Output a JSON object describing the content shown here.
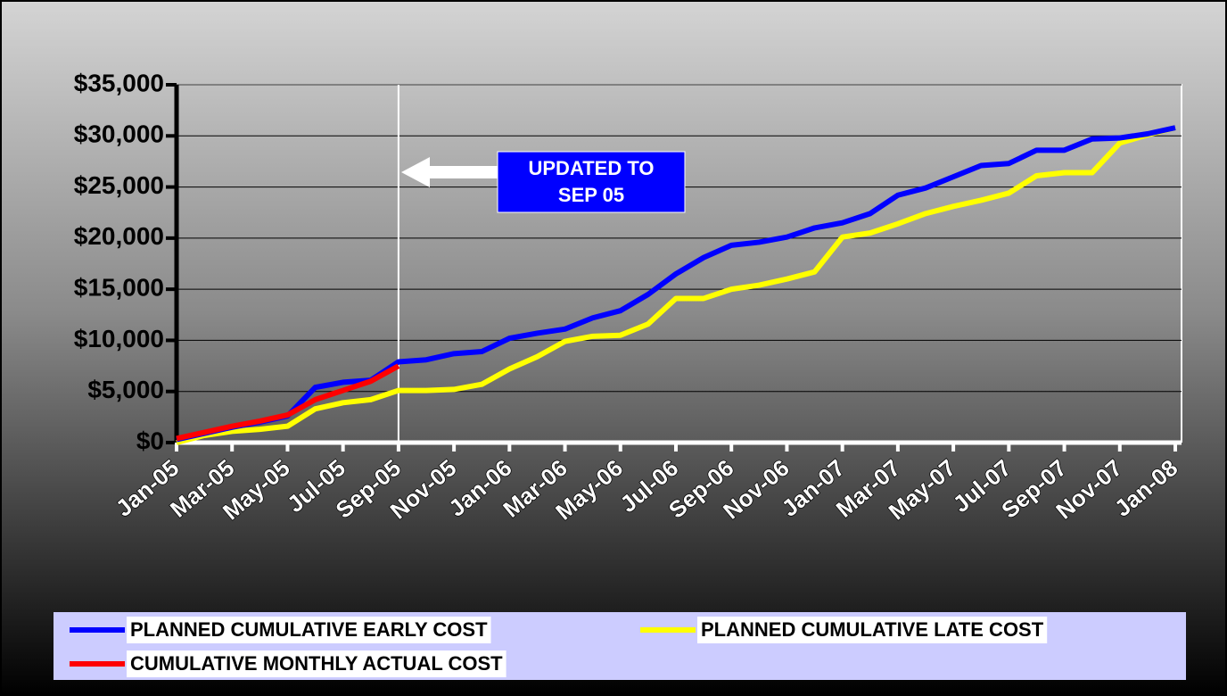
{
  "chart_data": {
    "type": "line",
    "categories": [
      "Jan-05",
      null,
      "Mar-05",
      null,
      "May-05",
      null,
      "Jul-05",
      null,
      "Sep-05",
      null,
      "Nov-05",
      null,
      "Jan-06",
      null,
      "Mar-06",
      null,
      "May-06",
      null,
      "Jul-06",
      null,
      "Sep-06",
      null,
      "Nov-06",
      null,
      "Jan-07",
      null,
      "Mar-07",
      null,
      "May-07",
      null,
      "Jul-07",
      null,
      "Sep-07",
      null,
      "Nov-07",
      null,
      "Jan-08"
    ],
    "series": [
      {
        "name": "PLANNED CUMULATIVE EARLY COST",
        "color": "#0000ff",
        "values": [
          300,
          900,
          1500,
          2000,
          2600,
          5400,
          5900,
          6100,
          7900,
          8100,
          8700,
          8900,
          10200,
          10700,
          11100,
          12200,
          12900,
          14500,
          16500,
          18100,
          19300,
          19600,
          20100,
          21000,
          21500,
          22400,
          24200,
          24900,
          26000,
          27100,
          27300,
          28600,
          28600,
          29700,
          29800,
          30200,
          30800
        ]
      },
      {
        "name": "PLANNED CUMULATIVE LATE COST",
        "color": "#ffff00",
        "values": [
          0,
          700,
          1100,
          1300,
          1600,
          3300,
          3900,
          4200,
          5100,
          5100,
          5200,
          5700,
          7200,
          8400,
          9900,
          10400,
          10500,
          11600,
          14100,
          14100,
          15000,
          15400,
          16000,
          16700,
          20100,
          20500,
          21400,
          22400,
          23100,
          23700,
          24400,
          26100,
          26400,
          26400,
          29300,
          30100,
          30800
        ]
      },
      {
        "name": "CUMULATIVE MONTHLY ACTUAL COST",
        "color": "#ff0000",
        "values": [
          400,
          1000,
          1600,
          2100,
          2700,
          4200,
          5100,
          6000,
          7500,
          null,
          null,
          null,
          null,
          null,
          null,
          null,
          null,
          null,
          null,
          null,
          null,
          null,
          null,
          null,
          null,
          null,
          null,
          null,
          null,
          null,
          null,
          null,
          null,
          null,
          null,
          null,
          null
        ]
      }
    ],
    "ylim": [
      0,
      35000
    ],
    "yticks": [
      {
        "value": 0,
        "label": "$0"
      },
      {
        "value": 5000,
        "label": "$5,000"
      },
      {
        "value": 10000,
        "label": "$10,000"
      },
      {
        "value": 15000,
        "label": "$15,000"
      },
      {
        "value": 20000,
        "label": "$20,000"
      },
      {
        "value": 25000,
        "label": "$25,000"
      },
      {
        "value": 30000,
        "label": "$30,000"
      },
      {
        "value": 35000,
        "label": "$35,000"
      }
    ],
    "grid": true,
    "annotation": [
      "UPDATED TO",
      "SEP 05"
    ]
  }
}
